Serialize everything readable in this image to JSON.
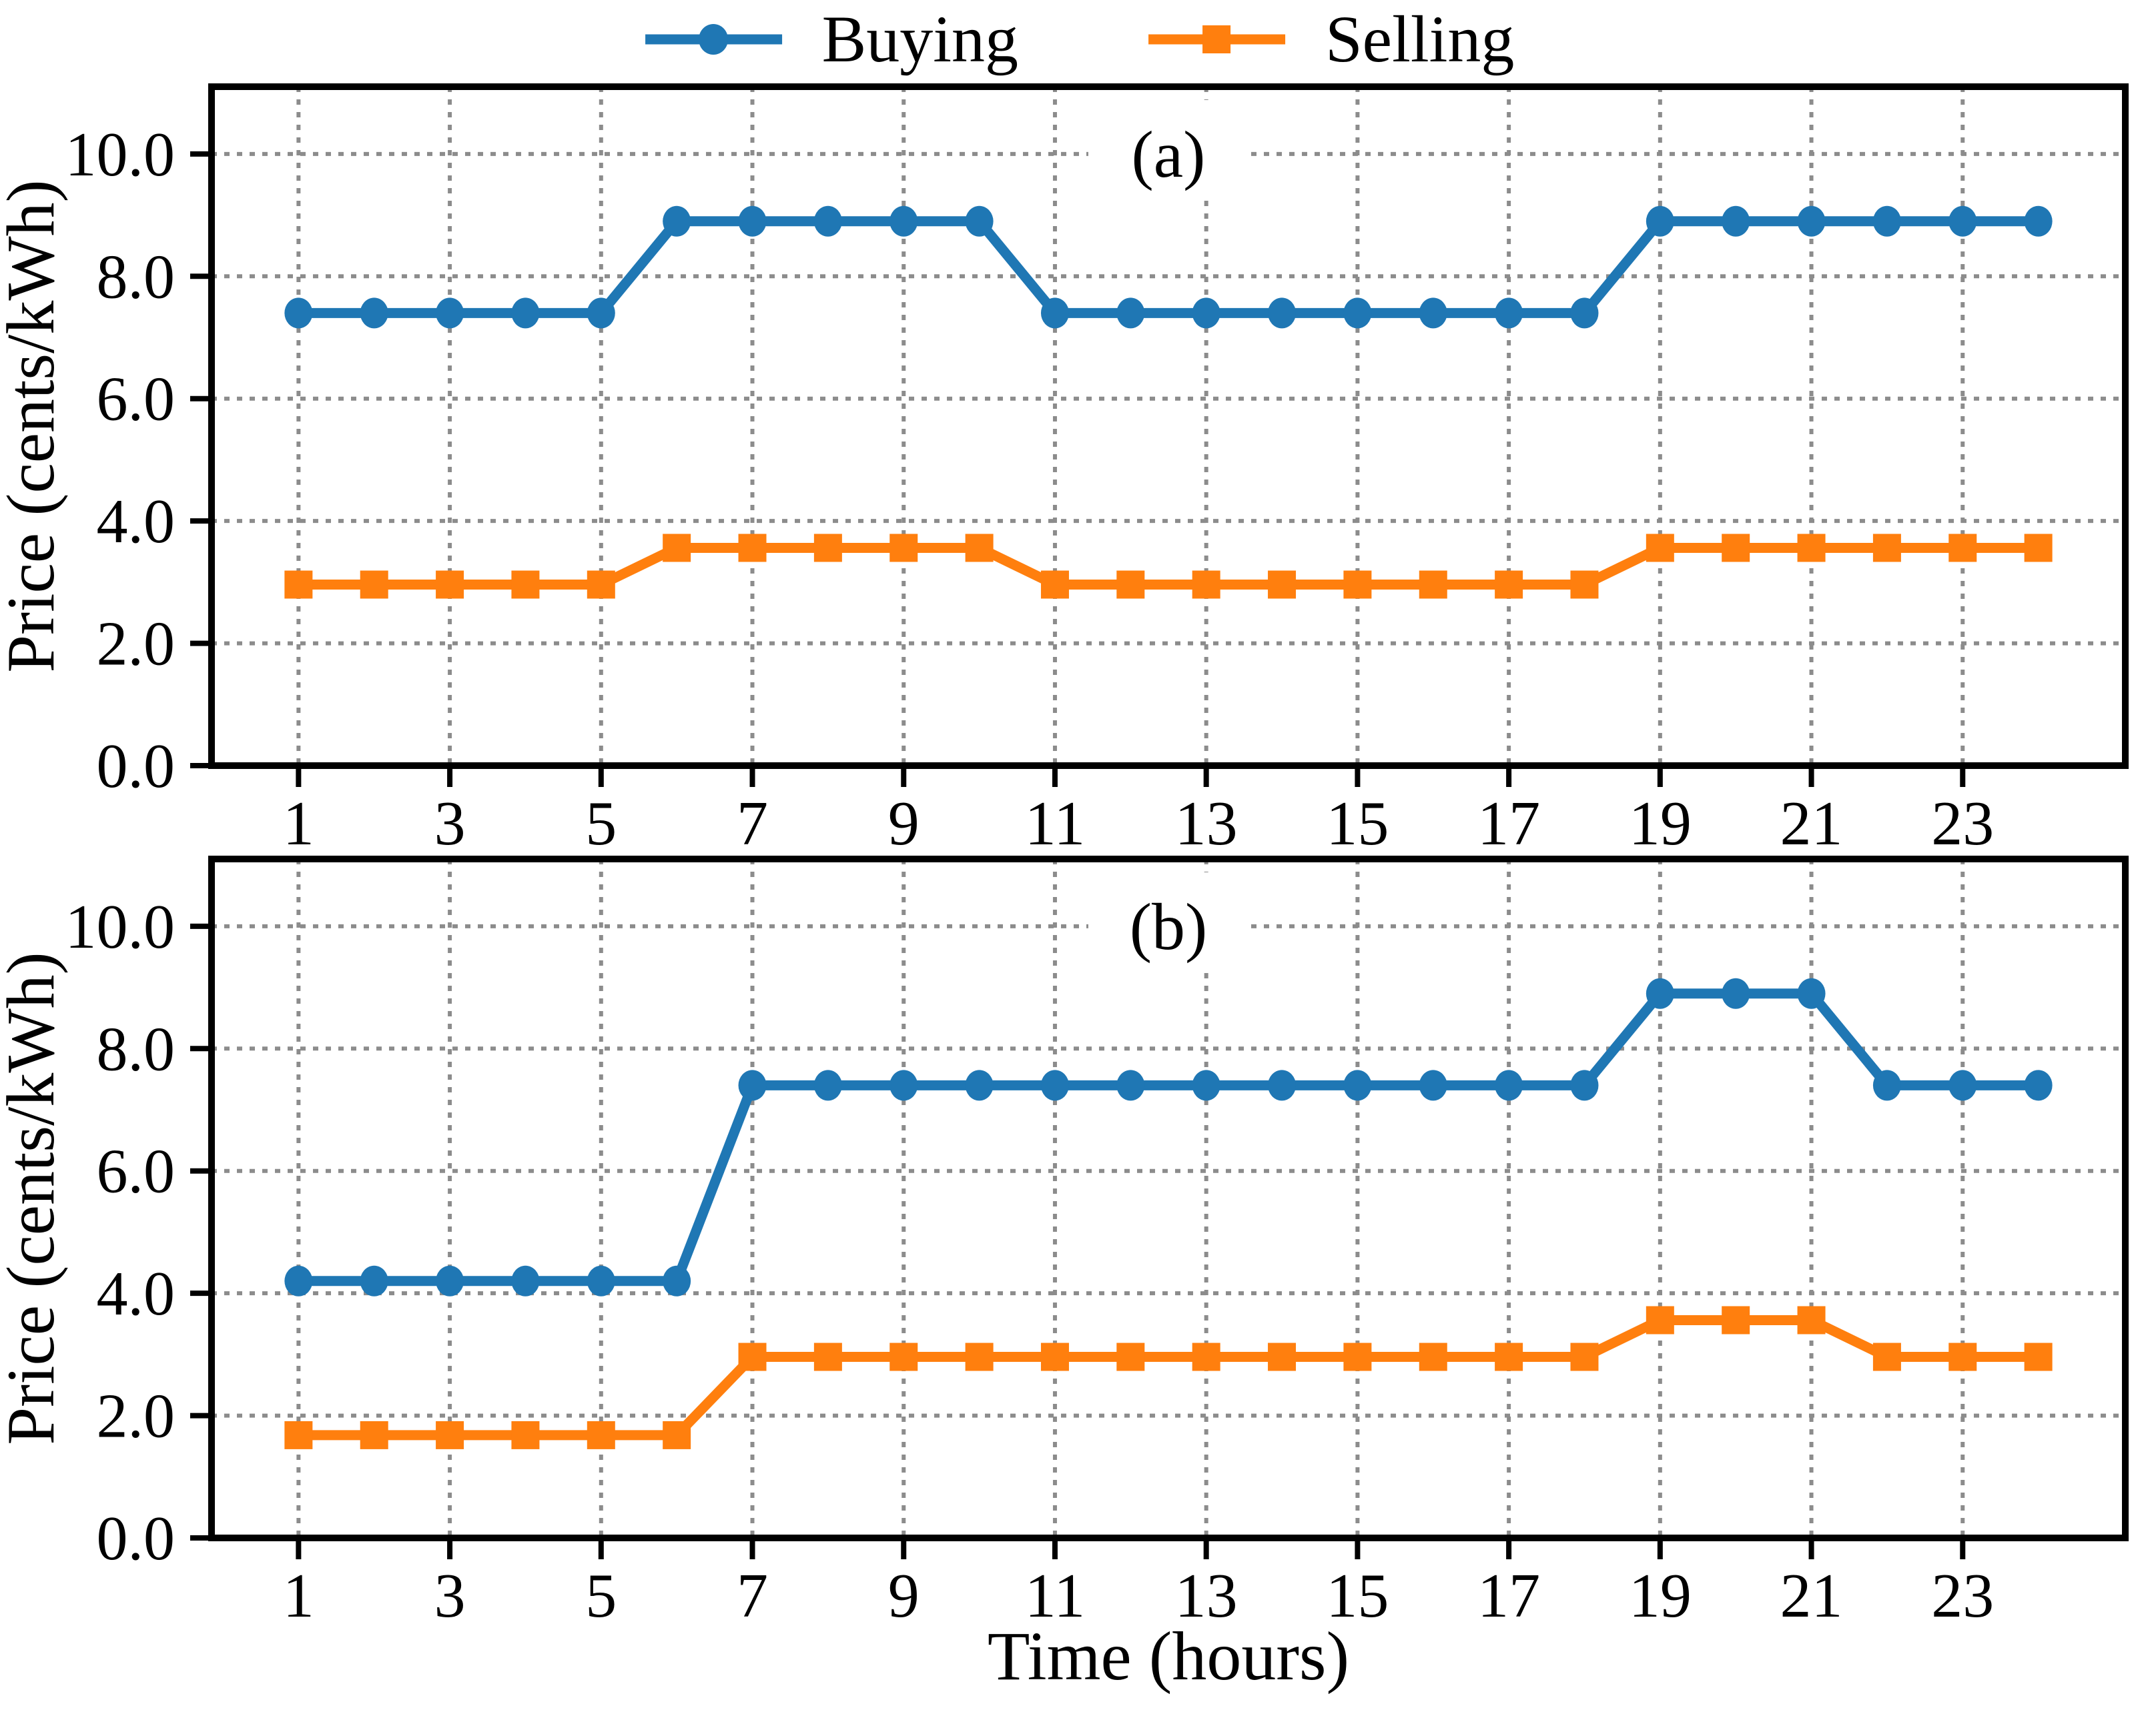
{
  "legend": {
    "items": [
      {
        "label": "Buying",
        "color": "#1f77b4",
        "marker": "circle"
      },
      {
        "label": "Selling",
        "color": "#ff7f0e",
        "marker": "square"
      }
    ]
  },
  "xlabel": "Time (hours)",
  "colors": {
    "buying": "#1f77b4",
    "selling": "#ff7f0e",
    "grid": "#8c8c8c",
    "axis": "#000000",
    "background": "#ffffff"
  },
  "chart_data": [
    {
      "type": "line",
      "panel_label": "(a)",
      "ylabel": "Price (cents/kWh)",
      "xlabel": "",
      "x": [
        1,
        2,
        3,
        4,
        5,
        6,
        7,
        8,
        9,
        10,
        11,
        12,
        13,
        14,
        15,
        16,
        17,
        18,
        19,
        20,
        21,
        22,
        23,
        24
      ],
      "series": [
        {
          "name": "Buying",
          "color": "#1f77b4",
          "marker": "circle",
          "values": [
            7.4,
            7.4,
            7.4,
            7.4,
            7.4,
            8.9,
            8.9,
            8.9,
            8.9,
            8.9,
            7.4,
            7.4,
            7.4,
            7.4,
            7.4,
            7.4,
            7.4,
            7.4,
            8.9,
            8.9,
            8.9,
            8.9,
            8.9,
            8.9
          ]
        },
        {
          "name": "Selling",
          "color": "#ff7f0e",
          "marker": "square",
          "values": [
            2.96,
            2.96,
            2.96,
            2.96,
            2.96,
            3.56,
            3.56,
            3.56,
            3.56,
            3.56,
            2.96,
            2.96,
            2.96,
            2.96,
            2.96,
            2.96,
            2.96,
            2.96,
            3.56,
            3.56,
            3.56,
            3.56,
            3.56,
            3.56
          ]
        }
      ],
      "xlim": [
        -0.15,
        25.15
      ],
      "ylim": [
        0,
        11.1
      ],
      "xticks": [
        1,
        3,
        5,
        7,
        9,
        11,
        13,
        15,
        17,
        19,
        21,
        23
      ],
      "yticks": [
        0,
        2,
        4,
        6,
        8,
        10
      ],
      "ytick_labels": [
        "0.0",
        "2.0",
        "4.0",
        "6.0",
        "8.0",
        "10.0"
      ],
      "grid": true,
      "legend_position": "above-figure-center"
    },
    {
      "type": "line",
      "panel_label": "(b)",
      "ylabel": "Price (cents/kWh)",
      "xlabel": "Time (hours)",
      "x": [
        1,
        2,
        3,
        4,
        5,
        6,
        7,
        8,
        9,
        10,
        11,
        12,
        13,
        14,
        15,
        16,
        17,
        18,
        19,
        20,
        21,
        22,
        23,
        24
      ],
      "series": [
        {
          "name": "Buying",
          "color": "#1f77b4",
          "marker": "circle",
          "values": [
            4.2,
            4.2,
            4.2,
            4.2,
            4.2,
            4.2,
            7.4,
            7.4,
            7.4,
            7.4,
            7.4,
            7.4,
            7.4,
            7.4,
            7.4,
            7.4,
            7.4,
            7.4,
            8.9,
            8.9,
            8.9,
            7.4,
            7.4,
            7.4
          ]
        },
        {
          "name": "Selling",
          "color": "#ff7f0e",
          "marker": "square",
          "values": [
            1.68,
            1.68,
            1.68,
            1.68,
            1.68,
            1.68,
            2.96,
            2.96,
            2.96,
            2.96,
            2.96,
            2.96,
            2.96,
            2.96,
            2.96,
            2.96,
            2.96,
            2.96,
            3.56,
            3.56,
            3.56,
            2.96,
            2.96,
            2.96
          ]
        }
      ],
      "xlim": [
        -0.15,
        25.15
      ],
      "ylim": [
        0,
        11.1
      ],
      "xticks": [
        1,
        3,
        5,
        7,
        9,
        11,
        13,
        15,
        17,
        19,
        21,
        23
      ],
      "yticks": [
        0,
        2,
        4,
        6,
        8,
        10
      ],
      "ytick_labels": [
        "0.0",
        "2.0",
        "4.0",
        "6.0",
        "8.0",
        "10.0"
      ],
      "grid": true
    }
  ]
}
